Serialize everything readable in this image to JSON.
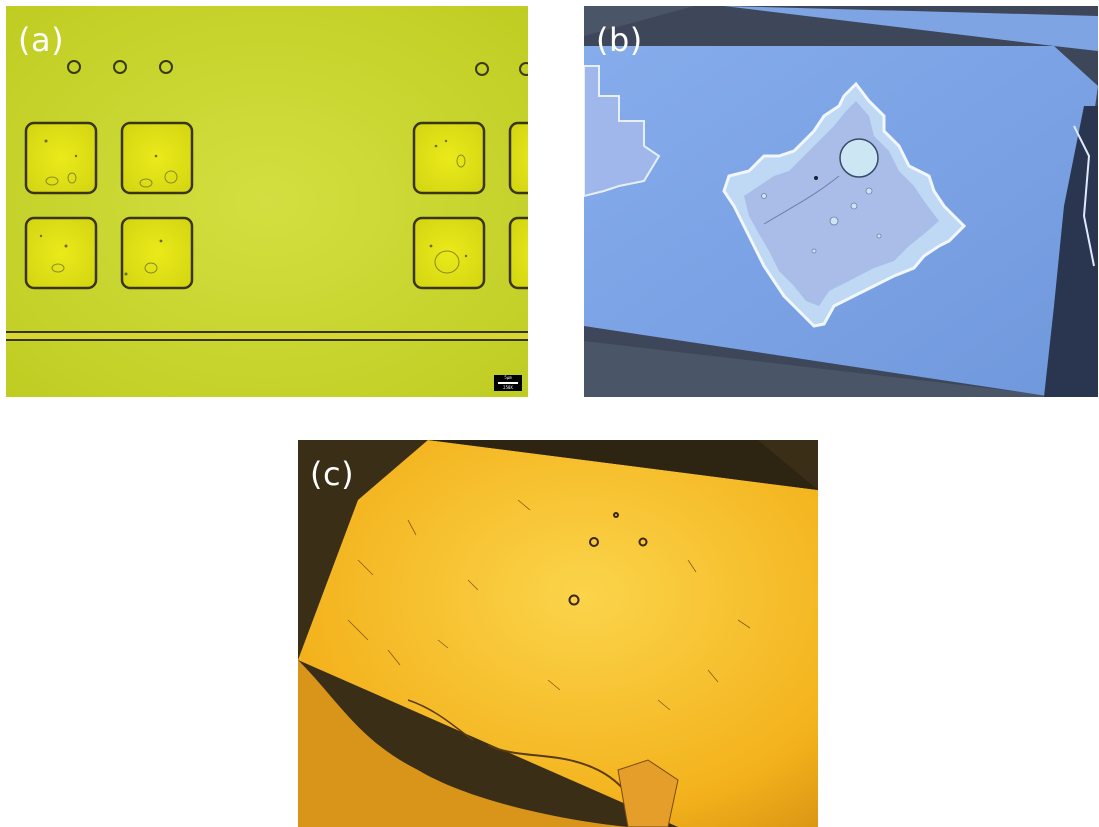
{
  "panels": [
    {
      "label": "(a)"
    },
    {
      "label": "(b)"
    },
    {
      "label": "(c)"
    }
  ],
  "scalebar": {
    "unit": "5μm",
    "mag": "250X"
  },
  "colors": {
    "panel_a_bg": "#c8d52a",
    "panel_b_bg": "#7fa8ea",
    "panel_c_bg": "#f3b21c",
    "dark_bg": "#3b2e17"
  }
}
